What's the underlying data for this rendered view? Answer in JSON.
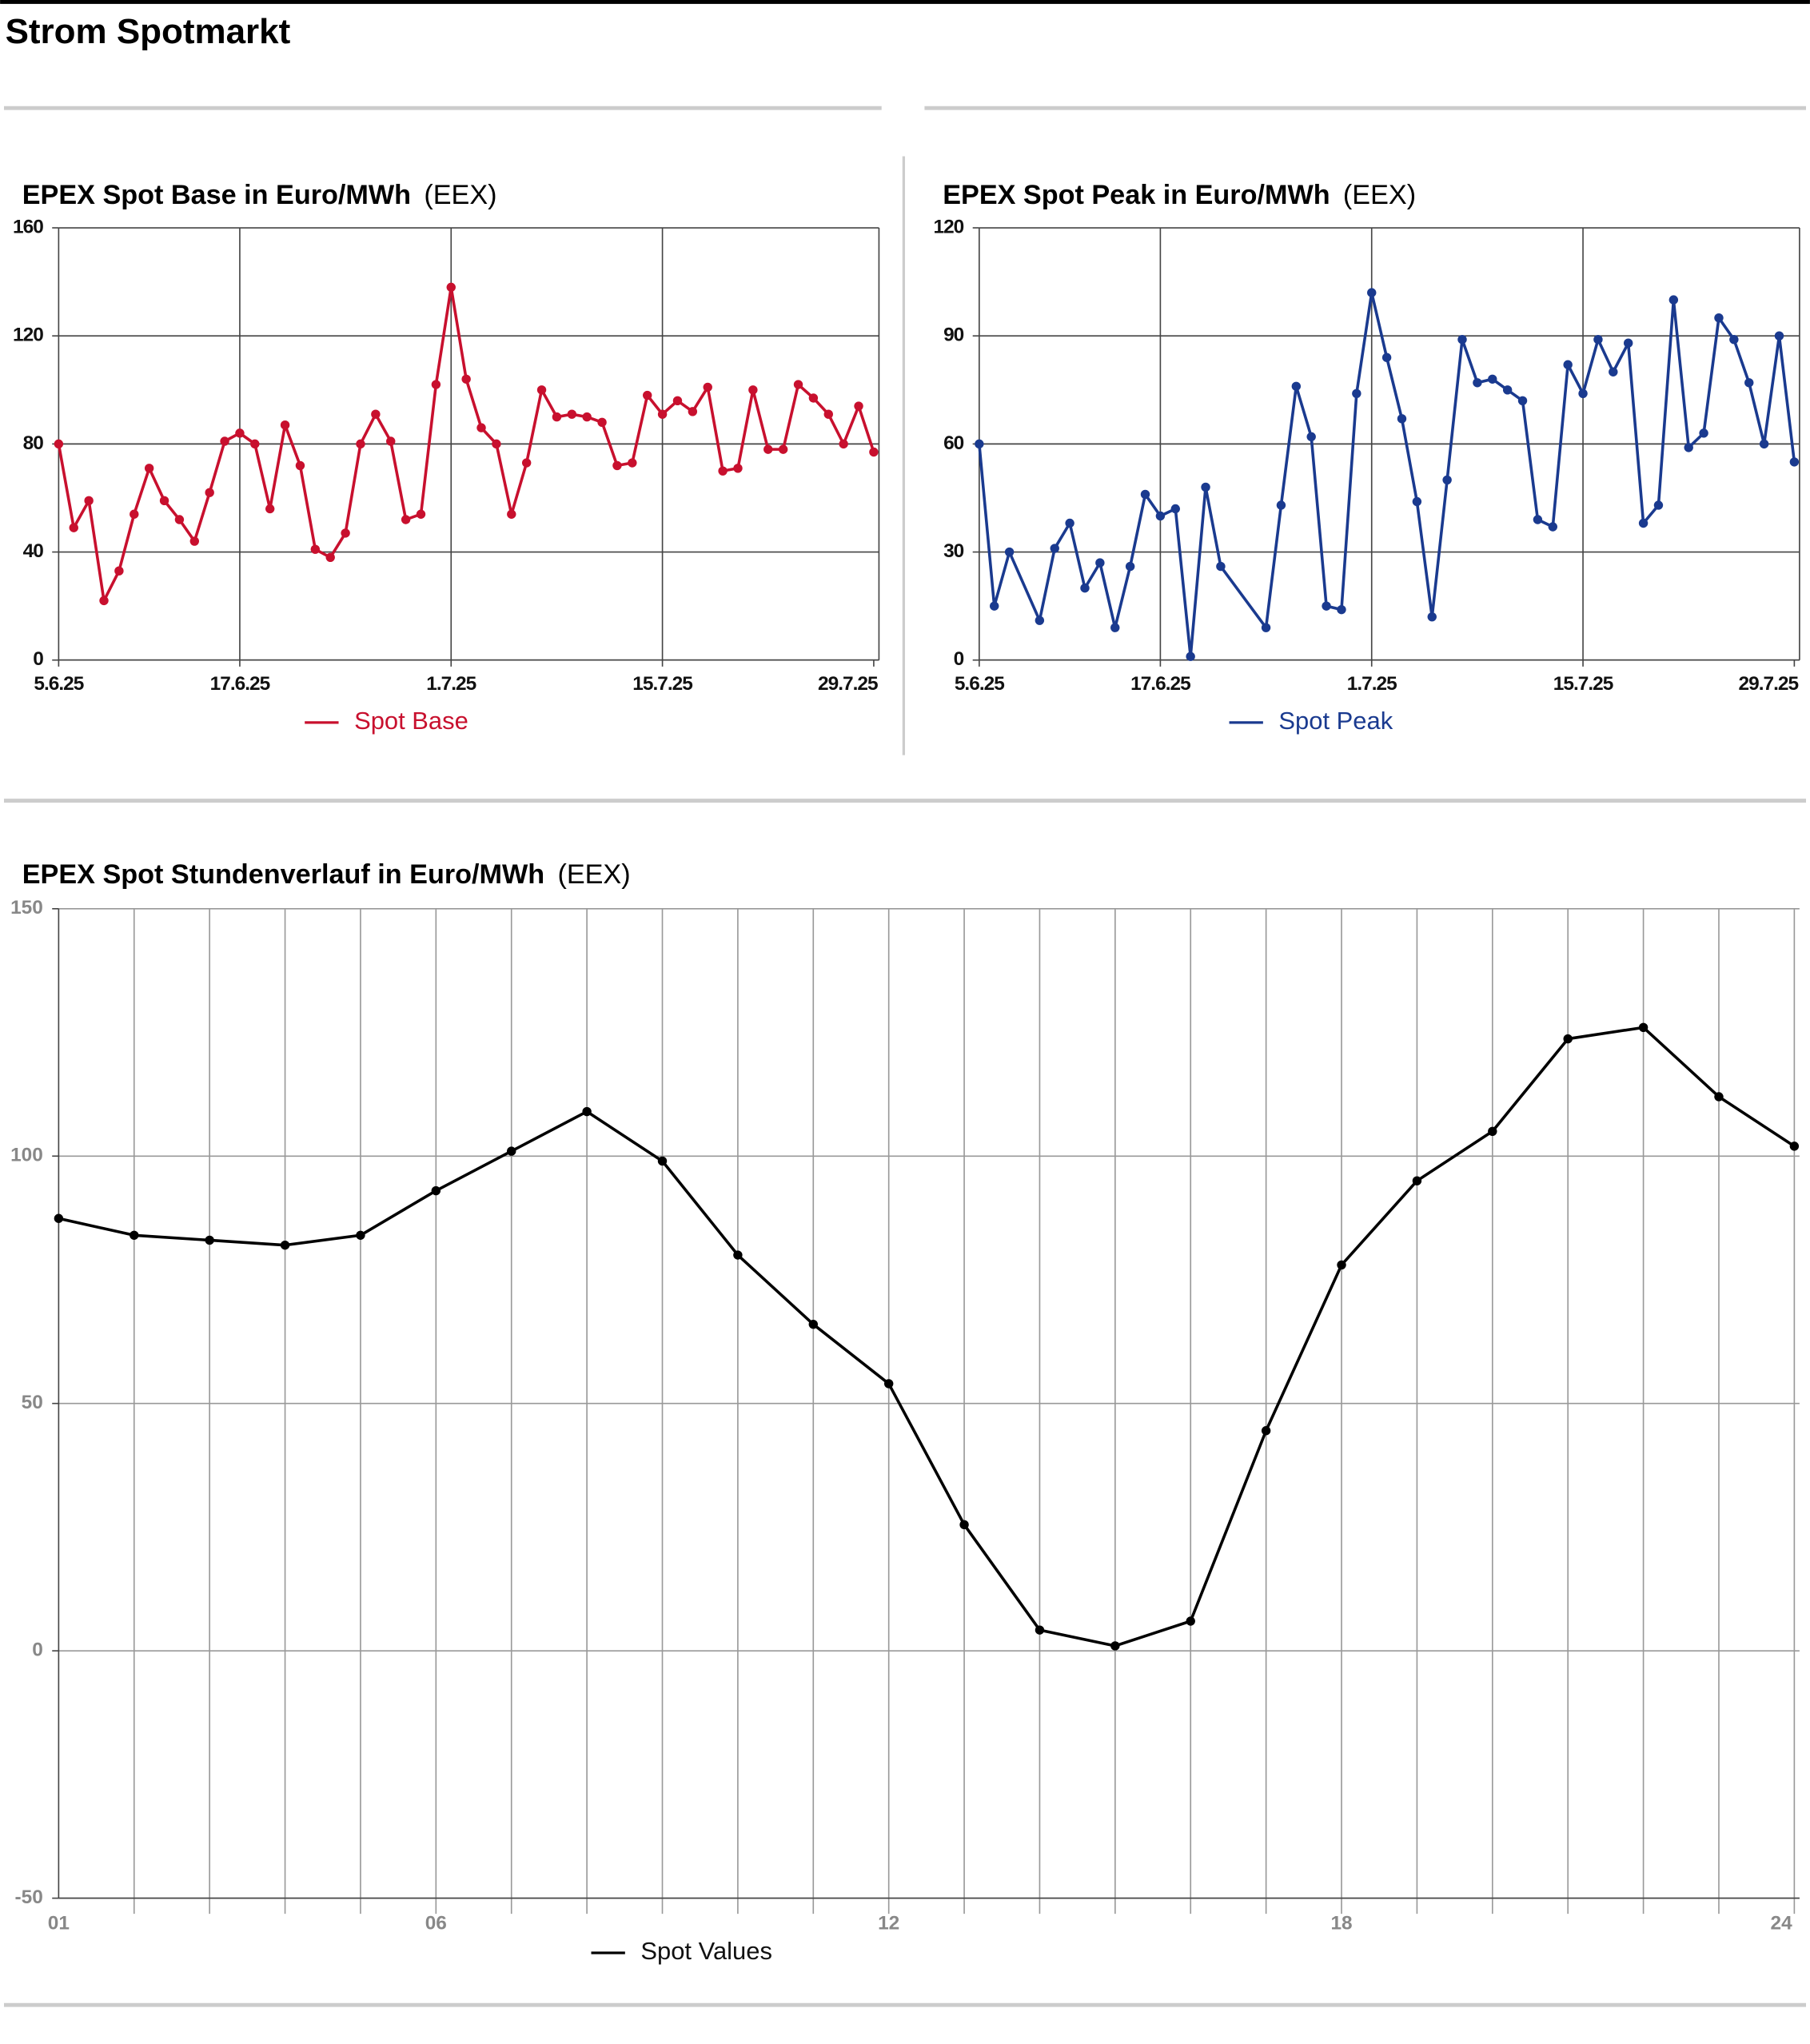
{
  "title": "Strom Spotmarkt",
  "chart_data": [
    {
      "type": "line",
      "title": "EPEX Spot Base in Euro/MWh",
      "source": "(EEX)",
      "x": [
        "5.6.25",
        "6.6.25",
        "7.6.25",
        "8.6.25",
        "9.6.25",
        "10.6.25",
        "11.6.25",
        "12.6.25",
        "13.6.25",
        "14.6.25",
        "15.6.25",
        "16.6.25",
        "17.6.25",
        "18.6.25",
        "19.6.25",
        "20.6.25",
        "21.6.25",
        "22.6.25",
        "23.6.25",
        "24.6.25",
        "25.6.25",
        "26.6.25",
        "27.6.25",
        "28.6.25",
        "29.6.25",
        "30.6.25",
        "1.7.25",
        "2.7.25",
        "3.7.25",
        "4.7.25",
        "5.7.25",
        "6.7.25",
        "7.7.25",
        "8.7.25",
        "9.7.25",
        "10.7.25",
        "11.7.25",
        "12.7.25",
        "13.7.25",
        "14.7.25",
        "15.7.25",
        "16.7.25",
        "17.7.25",
        "18.7.25",
        "19.7.25",
        "20.7.25",
        "21.7.25",
        "22.7.25",
        "23.7.25",
        "24.7.25",
        "25.7.25",
        "26.7.25",
        "27.7.25",
        "28.7.25",
        "29.7.25"
      ],
      "xticks": [
        "5.6.25",
        "17.6.25",
        "1.7.25",
        "15.7.25",
        "29.7.25"
      ],
      "series": [
        {
          "name": "Spot Base",
          "color": "#c8102e",
          "values": [
            80,
            49,
            59,
            22,
            33,
            54,
            71,
            59,
            52,
            44,
            62,
            81,
            84,
            80,
            56,
            87,
            72,
            41,
            38,
            47,
            80,
            91,
            81,
            52,
            54,
            102,
            138,
            104,
            86,
            80,
            54,
            73,
            100,
            90,
            91,
            90,
            88,
            72,
            73,
            98,
            91,
            96,
            92,
            101,
            70,
            71,
            100,
            78,
            78,
            102,
            97,
            91,
            80,
            94,
            77
          ]
        }
      ],
      "ylim": [
        0,
        160
      ],
      "yticks": [
        0,
        40,
        80,
        120,
        160
      ],
      "grid": true
    },
    {
      "type": "line",
      "title": "EPEX Spot Peak in Euro/MWh",
      "source": "(EEX)",
      "x": [
        "5.6.25",
        "6.6.25",
        "7.6.25",
        "9.6.25",
        "10.6.25",
        "11.6.25",
        "12.6.25",
        "13.6.25",
        "14.6.25",
        "15.6.25",
        "16.6.25",
        "17.6.25",
        "18.6.25",
        "19.6.25",
        "20.6.25",
        "21.6.25",
        "24.6.25",
        "25.6.25",
        "26.6.25",
        "27.6.25",
        "28.6.25",
        "29.6.25",
        "30.6.25",
        "1.7.25",
        "2.7.25",
        "3.7.25",
        "4.7.25",
        "5.7.25",
        "6.7.25",
        "7.7.25",
        "8.7.25",
        "9.7.25",
        "10.7.25",
        "11.7.25",
        "12.7.25",
        "13.7.25",
        "14.7.25",
        "15.7.25",
        "16.7.25",
        "17.7.25",
        "18.7.25",
        "19.7.25",
        "20.7.25",
        "21.7.25",
        "22.7.25",
        "23.7.25",
        "24.7.25",
        "25.7.25",
        "26.7.25",
        "27.7.25",
        "28.7.25",
        "29.7.25"
      ],
      "xticks": [
        "5.6.25",
        "17.6.25",
        "1.7.25",
        "15.7.25",
        "29.7.25"
      ],
      "series": [
        {
          "name": "Spot Peak",
          "color": "#1a3a8f",
          "values": [
            60,
            15,
            30,
            11,
            31,
            38,
            20,
            27,
            9,
            26,
            46,
            40,
            42,
            1,
            48,
            26,
            9,
            43,
            76,
            62,
            15,
            14,
            74,
            102,
            84,
            67,
            44,
            12,
            50,
            89,
            77,
            78,
            75,
            72,
            39,
            37,
            82,
            74,
            89,
            80,
            88,
            38,
            43,
            100,
            59,
            63,
            95,
            89,
            77,
            60,
            90,
            55
          ]
        }
      ],
      "ylim": [
        0,
        120
      ],
      "yticks": [
        0,
        30,
        60,
        90,
        120
      ],
      "grid": true
    },
    {
      "type": "line",
      "title": "EPEX Spot Stundenverlauf in Euro/MWh",
      "source": "(EEX)",
      "categories": [
        "01",
        null,
        null,
        null,
        null,
        "06",
        null,
        null,
        null,
        null,
        null,
        "12",
        null,
        null,
        null,
        null,
        null,
        "18",
        null,
        null,
        null,
        null,
        null,
        "24"
      ],
      "series": [
        {
          "name": "Spot Values",
          "color": "#000000",
          "values": [
            87.4,
            84,
            83,
            82,
            84,
            93,
            101,
            109,
            99,
            80,
            66,
            54,
            25.5,
            4.2,
            1,
            6,
            44.5,
            78,
            95,
            105,
            123.7,
            126,
            112,
            102
          ]
        }
      ],
      "ylim": [
        -50,
        150
      ],
      "yticks": [
        -50,
        0,
        50,
        100,
        150
      ],
      "grid": true
    }
  ]
}
